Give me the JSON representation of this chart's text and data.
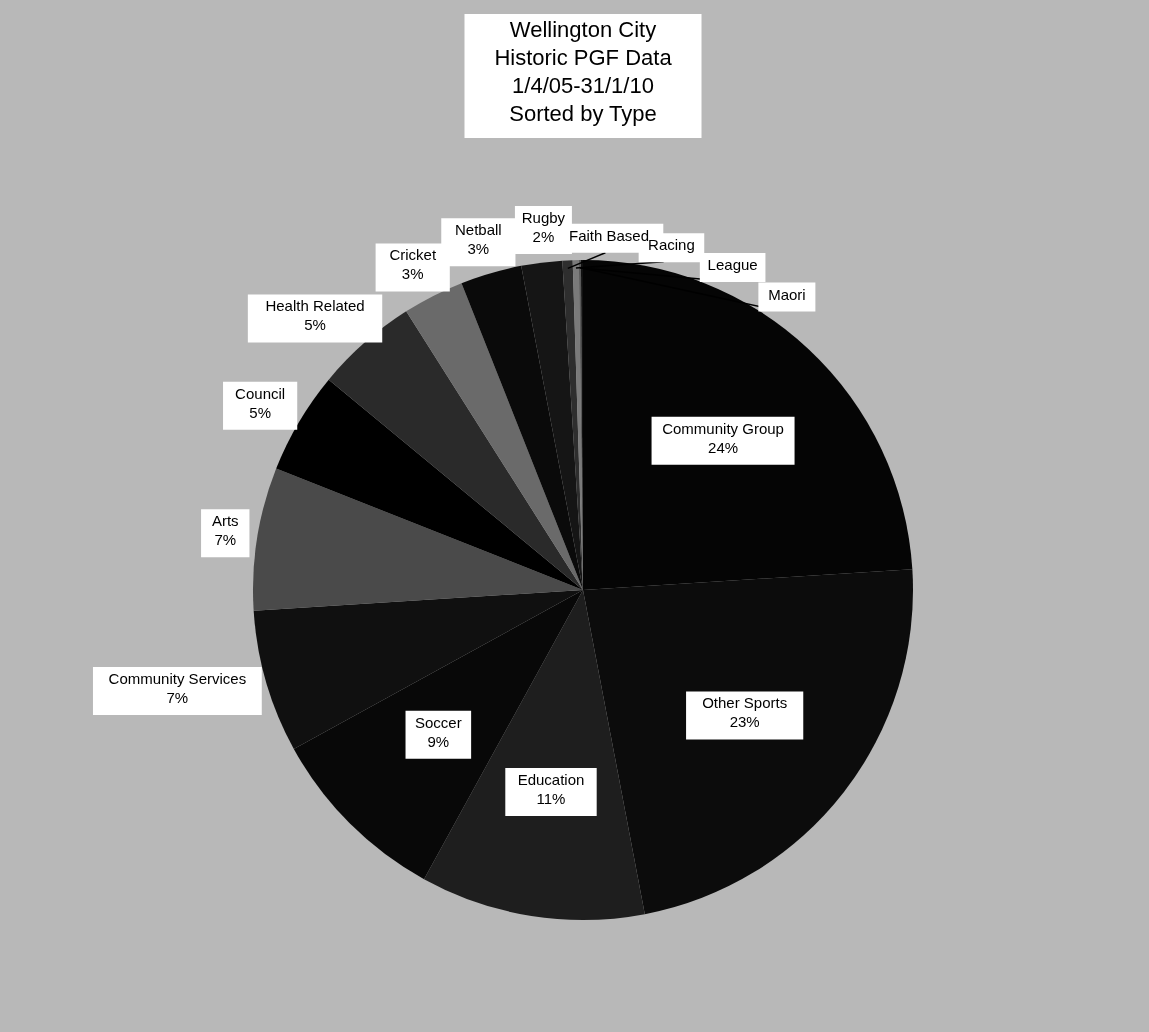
{
  "chart_data": {
    "type": "pie",
    "title": "Wellington City\nHistoric  PGF Data\n1/4/05-31/1/10\nSorted by Type",
    "categories": [
      "Community Group",
      "Other Sports",
      "Education",
      "Soccer",
      "Community Services",
      "Arts",
      "Council",
      "Health Related",
      "Cricket",
      "Netball",
      "Rugby",
      "Faith Based",
      "Racing",
      "League",
      "Maori"
    ],
    "values": [
      24,
      23,
      11,
      9,
      7,
      7,
      5,
      5,
      3,
      3,
      2,
      0.5,
      0.3,
      0.1,
      0.1
    ],
    "colors": [
      "#050505",
      "#0c0c0c",
      "#1e1e1e",
      "#080808",
      "#101010",
      "#4a4a4a",
      "#000000",
      "#2a2a2a",
      "#6a6a6a",
      "#0a0a0a",
      "#151515",
      "#2e2e2e",
      "#7a7a7a",
      "#5a5a5a",
      "#111111"
    ],
    "value_labels": [
      "24%",
      "23%",
      "11%",
      "9%",
      "7%",
      "7%",
      "5%",
      "5%",
      "3%",
      "3%",
      "2%",
      null,
      null,
      null,
      null
    ]
  }
}
